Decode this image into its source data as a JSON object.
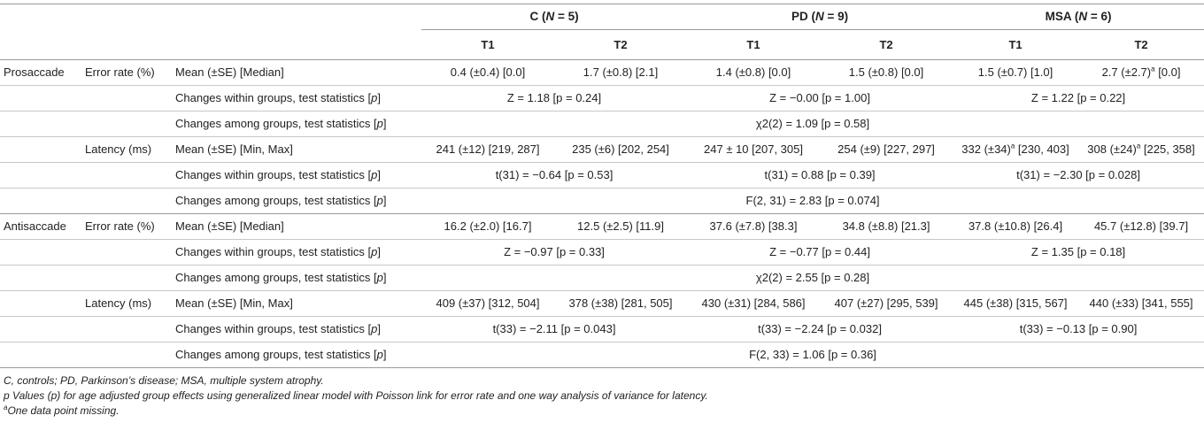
{
  "groups": [
    {
      "label_prefix": "C (",
      "n_italic": "N",
      "n_rest": " = 5)"
    },
    {
      "label_prefix": "PD (",
      "n_italic": "N",
      "n_rest": " = 9)"
    },
    {
      "label_prefix": "MSA (",
      "n_italic": "N",
      "n_rest": " = 6)"
    }
  ],
  "timepoints": [
    "T1",
    "T2",
    "T1",
    "T2",
    "T1",
    "T2"
  ],
  "sections": [
    {
      "name": "Prosaccade",
      "measures": [
        {
          "name": "Error rate (%)",
          "mean_label": "Mean (±SE) [Median]",
          "values": [
            "0.4 (±0.4) [0.0]",
            "1.7 (±0.8) [2.1]",
            "1.4 (±0.8) [0.0]",
            "1.5 (±0.8) [0.0]",
            "1.5 (±0.7) [1.0]",
            "2.7 (±2.7)"
          ],
          "within_label": "Changes within groups, test statistics [p]",
          "within": [
            "Z = 1.18 [p = 0.24]",
            "Z = −0.00 [p = 1.00]",
            "Z = 1.22 [p = 0.22]"
          ],
          "among_label": "Changes among groups, test statistics [p]",
          "among": "χ2(2) = 1.09 [p = 0.58]"
        },
        {
          "name": "Latency (ms)",
          "mean_label": "Mean (±SE) [Min, Max]",
          "values": [
            "241 (±12) [219, 287]",
            "235 (±6) [202, 254]",
            "247 ± 10 [207, 305]",
            "254 (±9) [227, 297]",
            "332 (±34)",
            "308 (±24)"
          ],
          "within_label": "Changes within groups, test statistics [p]",
          "within": [
            "t(31) = −0.64 [p = 0.53]",
            "t(31) = 0.88 [p = 0.39]",
            "t(31) = −2.30 [p = 0.028]"
          ],
          "among_label": "Changes among groups, test statistics [p]",
          "among": "F(2, 31) = 2.83 [p = 0.074]"
        }
      ]
    },
    {
      "name": "Antisaccade",
      "measures": [
        {
          "name": "Error rate (%)",
          "mean_label": "Mean (±SE) [Median]",
          "values": [
            "16.2 (±2.0) [16.7]",
            "12.5 (±2.5) [11.9]",
            "37.6 (±7.8) [38.3]",
            "34.8 (±8.8) [21.3]",
            "37.8 (±10.8) [26.4]",
            "45.7 (±12.8) [39.7]"
          ],
          "within_label": "Changes within groups, test statistics [p]",
          "within": [
            "Z = −0.97 [p = 0.33]",
            "Z = −0.77 [p = 0.44]",
            "Z = 1.35 [p = 0.18]"
          ],
          "among_label": "Changes among groups, test statistics [p]",
          "among": "χ2(2) = 2.55 [p = 0.28]"
        },
        {
          "name": "Latency (ms)",
          "mean_label": "Mean (±SE) [Min, Max]",
          "values": [
            "409 (±37) [312, 504]",
            "378 (±38) [281, 505]",
            "430 (±31) [284, 586]",
            "407 (±27) [295, 539]",
            "445 (±38) [315, 567]",
            "440 (±33) [341, 555]"
          ],
          "within_label": "Changes within groups, test statistics [p]",
          "within": [
            "t(33) = −2.11 [p = 0.043]",
            "t(33) = −2.24 [p = 0.032]",
            "t(33) = −0.13 [p = 0.90]"
          ],
          "among_label": "Changes among groups, test statistics [p]",
          "among": "F(2, 33) = 1.06 [p = 0.36]"
        }
      ]
    }
  ],
  "superscripts": {
    "pro_err_msa_t2_suffix": " [0.0]",
    "pro_lat_msa_t1_suffix": " [230, 403]",
    "pro_lat_msa_t2_suffix": " [225, 358]",
    "mark": "a"
  },
  "footnotes": {
    "line1": "C, controls; PD, Parkinson’s disease; MSA, multiple system atrophy.",
    "line2": "p Values (p) for age adjusted group effects using generalized linear model with Poisson link for error rate and one way analysis of variance for latency.",
    "line3_mark": "a",
    "line3": "One data point missing."
  }
}
